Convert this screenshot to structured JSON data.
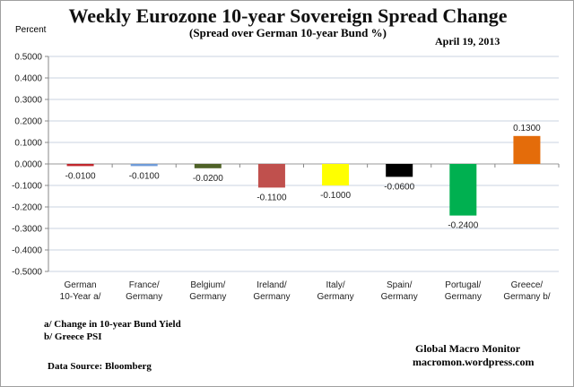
{
  "chart_data": {
    "type": "bar",
    "title": "Weekly Eurozone 10-year Sovereign Spread Change",
    "subtitle": "(Spread over German 10-year Bund  %)",
    "date": "April 19, 2013",
    "ylabel": "Percent",
    "xlabel": "",
    "ylim": [
      -0.5,
      0.5
    ],
    "yticks": [
      "0.5000",
      "0.4000",
      "0.3000",
      "0.2000",
      "0.1000",
      "0.0000",
      "-0.1000",
      "-0.2000",
      "-0.3000",
      "-0.4000",
      "-0.5000"
    ],
    "grid": true,
    "categories": [
      [
        "German",
        "10-Year a/"
      ],
      [
        "France/",
        "Germany"
      ],
      [
        "Belgium/",
        "Germany"
      ],
      [
        "Ireland/",
        "Germany"
      ],
      [
        "Italy/",
        "Germany"
      ],
      [
        "Spain/",
        "Germany"
      ],
      [
        "Portugal/",
        "Germany"
      ],
      [
        "Greece/",
        "Germany b/"
      ]
    ],
    "values": [
      -0.01,
      -0.01,
      -0.02,
      -0.11,
      -0.1,
      -0.06,
      -0.24,
      0.13
    ],
    "data_labels": [
      "-0.0100",
      "-0.0100",
      "-0.0200",
      "-0.1100",
      "-0.1000",
      "-0.0600",
      "-0.2400",
      "0.1300"
    ],
    "colors": [
      "#c0272d",
      "#6f9bd8",
      "#4f6228",
      "#c0504d",
      "#ffff00",
      "#000000",
      "#00b050",
      "#e46c0a"
    ]
  },
  "notes": {
    "a": "a/ Change in 10-year Bund Yield",
    "b": "b/ Greece PSI",
    "source": "Data Source:  Bloomberg",
    "brand1": "Global Macro Monitor",
    "brand2": "macromon.wordpress.com"
  }
}
